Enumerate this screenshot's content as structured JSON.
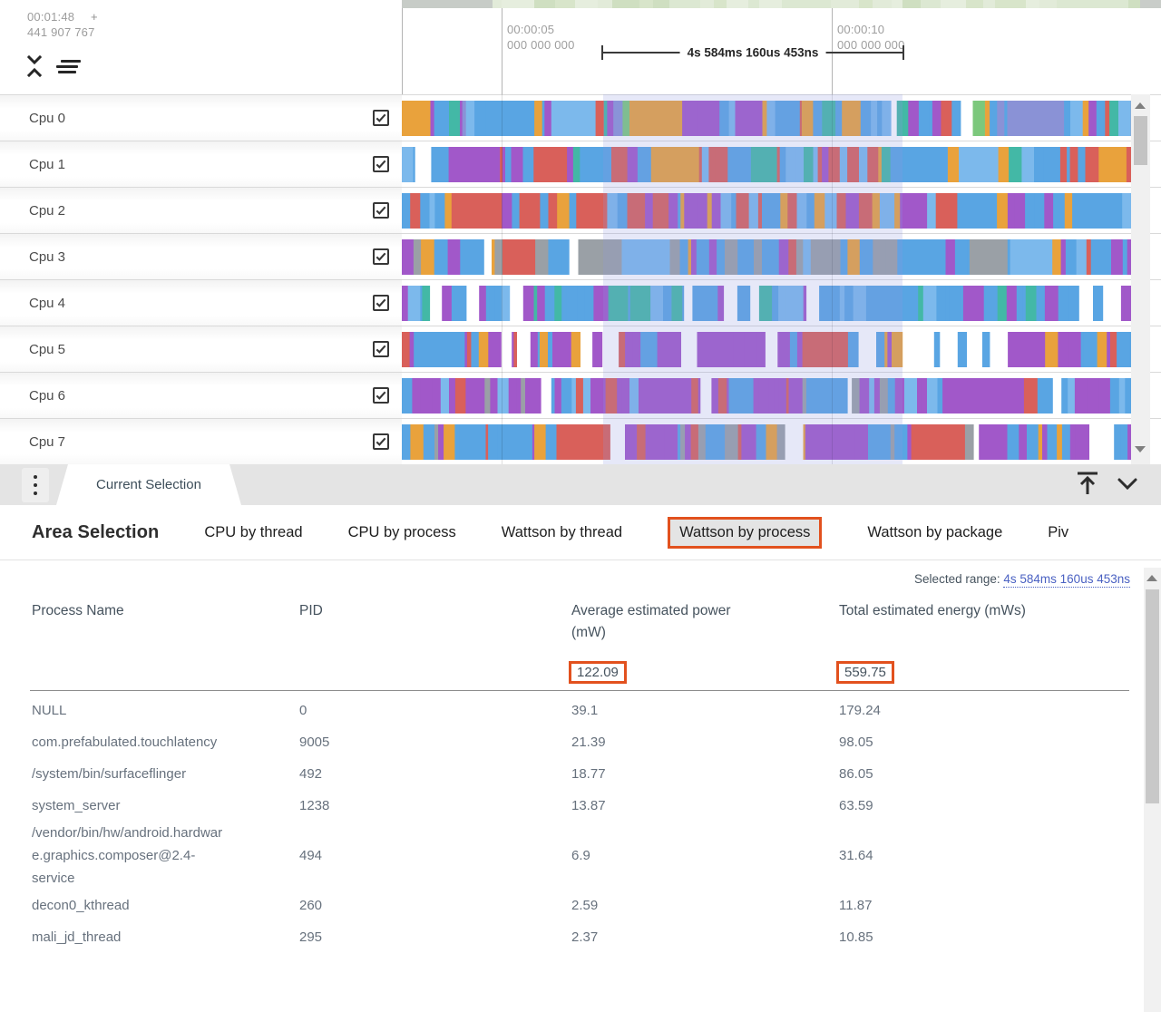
{
  "timeline": {
    "cursor": {
      "time": "00:01:48",
      "plus": "+",
      "ns": "441 907 767"
    },
    "ticks": [
      {
        "time": "00:00:05",
        "ns": "000 000 000"
      },
      {
        "time": "00:00:10",
        "ns": "000 000 000"
      }
    ],
    "range_label": "4s 584ms 160us 453ns",
    "minimap": {
      "lead_color": "#c7ccc7",
      "tail_color": "#c9cdc9",
      "palette": [
        "#e2ebd9",
        "#d8e5ca",
        "#cfdfc1",
        "#e6eede",
        "#dce8d2"
      ]
    },
    "tracks": [
      {
        "name": "Cpu 0",
        "checked": true,
        "gap": 0.015,
        "palette": [
          "#59A5E3",
          "#59A5E3",
          "#59A5E3",
          "#59A5E3",
          "#7CB9EC",
          "#E9A23C",
          "#E9A23C",
          "#A158C9",
          "#A158C9",
          "#D9605A",
          "#43B8A6",
          "#7CC87C",
          "#8A92D6"
        ]
      },
      {
        "name": "Cpu 1",
        "checked": true,
        "gap": 0.01,
        "palette": [
          "#D9605A",
          "#D9605A",
          "#D9605A",
          "#59A5E3",
          "#59A5E3",
          "#59A5E3",
          "#59A5E3",
          "#7CB9EC",
          "#A158C9",
          "#E9A23C",
          "#43B8A6"
        ]
      },
      {
        "name": "Cpu 2",
        "checked": true,
        "gap": 0.01,
        "palette": [
          "#59A5E3",
          "#59A5E3",
          "#59A5E3",
          "#59A5E3",
          "#D9605A",
          "#D9605A",
          "#D9605A",
          "#A158C9",
          "#A158C9",
          "#E9A23C",
          "#7CB9EC"
        ]
      },
      {
        "name": "Cpu 3",
        "checked": true,
        "gap": 0.02,
        "palette": [
          "#59A5E3",
          "#59A5E3",
          "#59A5E3",
          "#59A5E3",
          "#59A5E3",
          "#A158C9",
          "#A158C9",
          "#D9605A",
          "#9AA0A6",
          "#E9A23C",
          "#7CB9EC"
        ]
      },
      {
        "name": "Cpu 4",
        "checked": true,
        "gap": 0.09,
        "palette": [
          "#59A5E3",
          "#59A5E3",
          "#59A5E3",
          "#59A5E3",
          "#59A5E3",
          "#A158C9",
          "#A158C9",
          "#7CB9EC",
          "#43B8A6"
        ]
      },
      {
        "name": "Cpu 5",
        "checked": true,
        "gap": 0.1,
        "palette": [
          "#59A5E3",
          "#59A5E3",
          "#59A5E3",
          "#59A5E3",
          "#A158C9",
          "#A158C9",
          "#A158C9",
          "#D9605A",
          "#E9A23C"
        ]
      },
      {
        "name": "Cpu 6",
        "checked": true,
        "gap": 0.03,
        "palette": [
          "#A158C9",
          "#A158C9",
          "#A158C9",
          "#A158C9",
          "#A158C9",
          "#59A5E3",
          "#59A5E3",
          "#9AA0A6",
          "#D9605A",
          "#7CB9EC"
        ]
      },
      {
        "name": "Cpu 7",
        "checked": true,
        "gap": 0.07,
        "palette": [
          "#A158C9",
          "#A158C9",
          "#A158C9",
          "#A158C9",
          "#59A5E3",
          "#59A5E3",
          "#59A5E3",
          "#D9605A",
          "#E9A23C",
          "#9AA0A6"
        ]
      }
    ]
  },
  "tabstrip": {
    "current_tab": "Current Selection"
  },
  "panel": {
    "title": "Area Selection",
    "tabs": [
      "CPU by thread",
      "CPU by process",
      "Wattson by thread",
      "Wattson by process",
      "Wattson by package",
      "Piv"
    ],
    "selected_tab": "Wattson by process",
    "selected_range": {
      "label": "Selected range:",
      "value": "4s 584ms 160us 453ns"
    },
    "table": {
      "columns": [
        "Process Name",
        "PID",
        "Average estimated power (mW)",
        "Total estimated energy (mWs)"
      ],
      "totals": {
        "avg": "122.09",
        "total": "559.75"
      },
      "rows": [
        {
          "name": "NULL",
          "pid": "0",
          "avg": "39.1",
          "total": "179.24"
        },
        {
          "name": "com.prefabulated.touchlatency",
          "pid": "9005",
          "avg": "21.39",
          "total": "98.05"
        },
        {
          "name": "/system/bin/surfaceflinger",
          "pid": "492",
          "avg": "18.77",
          "total": "86.05"
        },
        {
          "name": "system_server",
          "pid": "1238",
          "avg": "13.87",
          "total": "63.59"
        },
        {
          "name": "/vendor/bin/hw/android.hardware.graphics.composer@2.4-service",
          "pid": "494",
          "avg": "6.9",
          "total": "31.64"
        },
        {
          "name": "decon0_kthread",
          "pid": "260",
          "avg": "2.59",
          "total": "11.87"
        },
        {
          "name": "mali_jd_thread",
          "pid": "295",
          "avg": "2.37",
          "total": "10.85"
        }
      ]
    }
  },
  "colors": {
    "annotation": "#e2511e",
    "link": "#4a61c2",
    "selection_overlay": "rgba(140,150,222,0.22)"
  }
}
